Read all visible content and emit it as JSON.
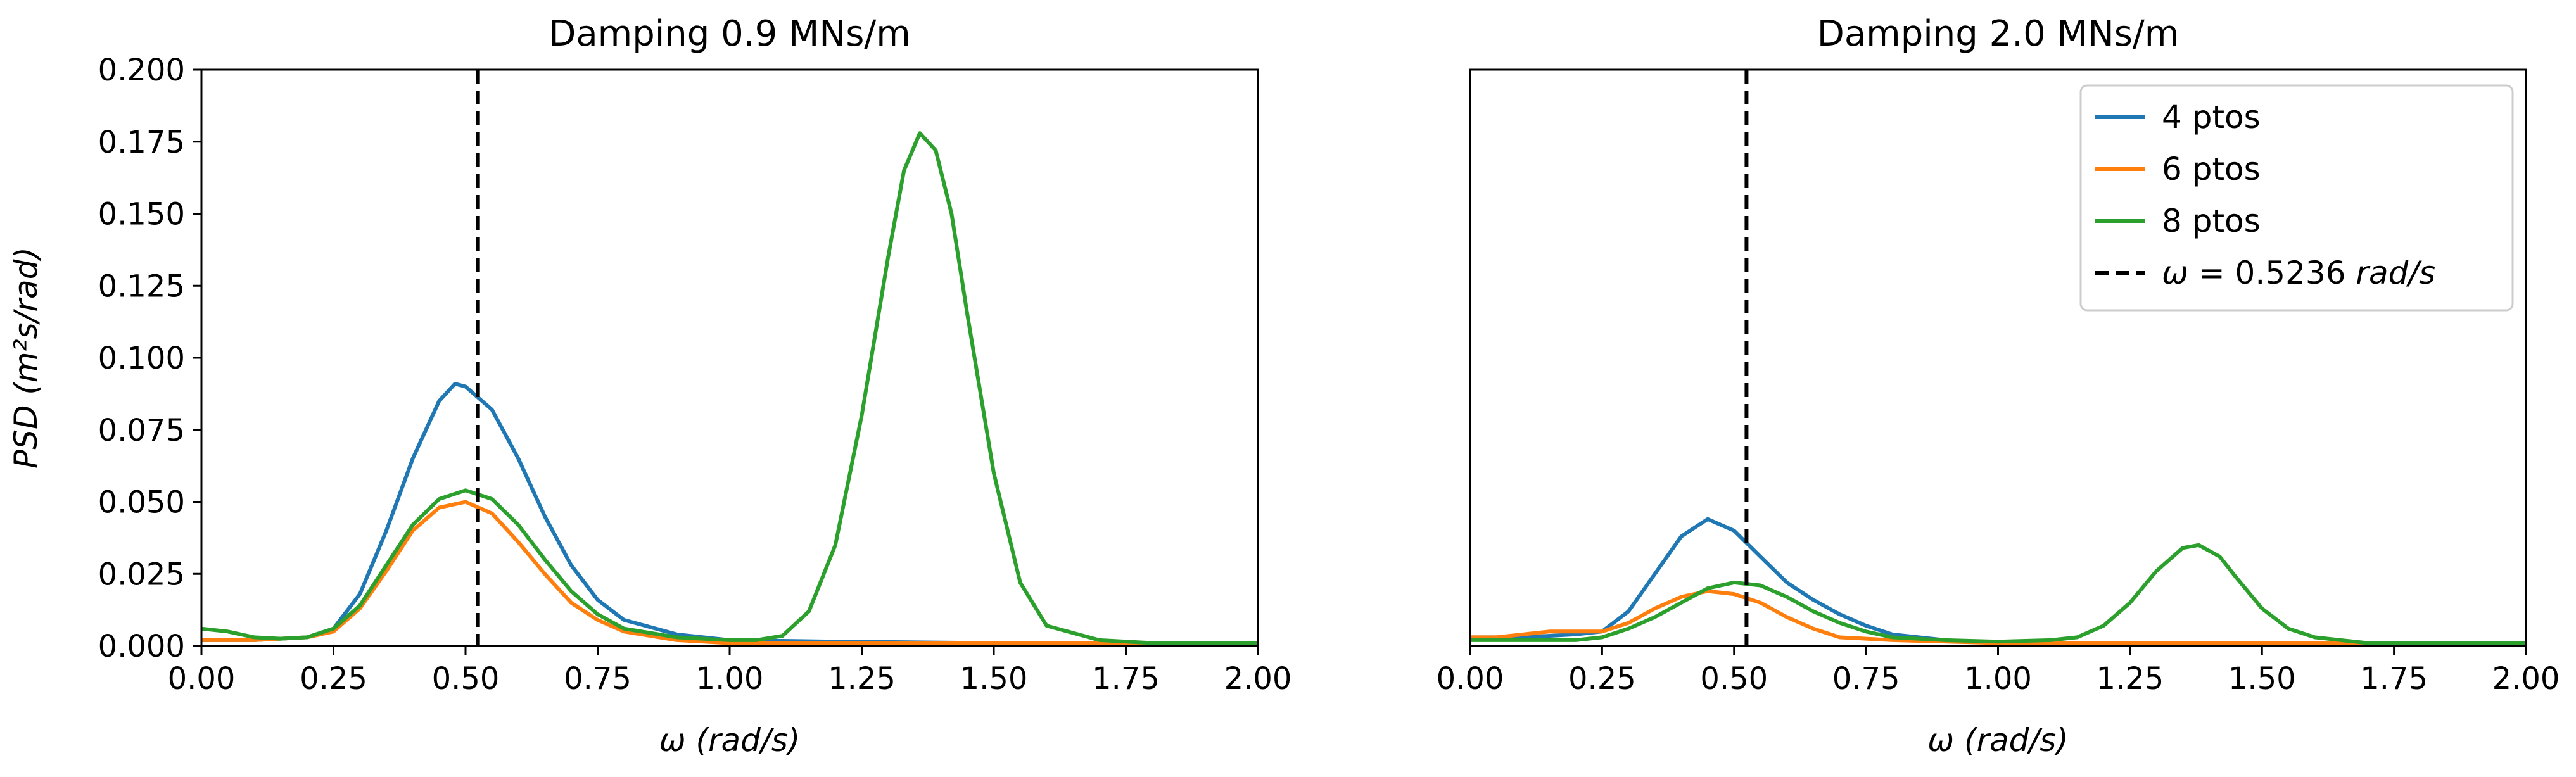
{
  "chart_data": [
    {
      "type": "line",
      "title": "Damping 0.9 MNs/m",
      "xlabel": "ω (rad/s)",
      "ylabel": "PSD (m²s/rad)",
      "xlim": [
        0.0,
        2.0
      ],
      "ylim": [
        0.0,
        0.2
      ],
      "x_ticks": [
        "0.00",
        "0.25",
        "0.50",
        "0.75",
        "1.00",
        "1.25",
        "1.50",
        "1.75",
        "2.00"
      ],
      "y_ticks": [
        "0.000",
        "0.025",
        "0.050",
        "0.075",
        "0.100",
        "0.125",
        "0.150",
        "0.175",
        "0.200"
      ],
      "grid": false,
      "vline": {
        "x": 0.5236,
        "style": "dashed",
        "color": "#000000"
      },
      "series": [
        {
          "name": "4 ptos",
          "color": "#1f77b4",
          "points": [
            [
              0.0,
              0.002
            ],
            [
              0.1,
              0.002
            ],
            [
              0.2,
              0.003
            ],
            [
              0.25,
              0.006
            ],
            [
              0.3,
              0.018
            ],
            [
              0.35,
              0.04
            ],
            [
              0.4,
              0.065
            ],
            [
              0.45,
              0.085
            ],
            [
              0.48,
              0.091
            ],
            [
              0.5,
              0.09
            ],
            [
              0.55,
              0.082
            ],
            [
              0.6,
              0.065
            ],
            [
              0.65,
              0.045
            ],
            [
              0.7,
              0.028
            ],
            [
              0.75,
              0.016
            ],
            [
              0.8,
              0.009
            ],
            [
              0.9,
              0.004
            ],
            [
              1.0,
              0.002
            ],
            [
              1.2,
              0.0015
            ],
            [
              1.5,
              0.001
            ],
            [
              2.0,
              0.001
            ]
          ]
        },
        {
          "name": "6 ptos",
          "color": "#ff7f0e",
          "points": [
            [
              0.0,
              0.002
            ],
            [
              0.1,
              0.002
            ],
            [
              0.2,
              0.003
            ],
            [
              0.25,
              0.005
            ],
            [
              0.3,
              0.013
            ],
            [
              0.35,
              0.026
            ],
            [
              0.4,
              0.04
            ],
            [
              0.45,
              0.048
            ],
            [
              0.5,
              0.05
            ],
            [
              0.55,
              0.046
            ],
            [
              0.6,
              0.036
            ],
            [
              0.65,
              0.025
            ],
            [
              0.7,
              0.015
            ],
            [
              0.75,
              0.009
            ],
            [
              0.8,
              0.005
            ],
            [
              0.9,
              0.002
            ],
            [
              1.0,
              0.001
            ],
            [
              1.5,
              0.001
            ],
            [
              2.0,
              0.001
            ]
          ]
        },
        {
          "name": "8 ptos",
          "color": "#2ca02c",
          "points": [
            [
              0.0,
              0.006
            ],
            [
              0.05,
              0.005
            ],
            [
              0.1,
              0.003
            ],
            [
              0.15,
              0.0025
            ],
            [
              0.2,
              0.003
            ],
            [
              0.25,
              0.006
            ],
            [
              0.3,
              0.014
            ],
            [
              0.35,
              0.028
            ],
            [
              0.4,
              0.042
            ],
            [
              0.45,
              0.051
            ],
            [
              0.5,
              0.054
            ],
            [
              0.55,
              0.051
            ],
            [
              0.6,
              0.042
            ],
            [
              0.65,
              0.03
            ],
            [
              0.7,
              0.019
            ],
            [
              0.75,
              0.011
            ],
            [
              0.8,
              0.006
            ],
            [
              0.9,
              0.003
            ],
            [
              1.0,
              0.002
            ],
            [
              1.05,
              0.002
            ],
            [
              1.1,
              0.0035
            ],
            [
              1.15,
              0.012
            ],
            [
              1.2,
              0.035
            ],
            [
              1.25,
              0.08
            ],
            [
              1.3,
              0.135
            ],
            [
              1.33,
              0.165
            ],
            [
              1.36,
              0.178
            ],
            [
              1.39,
              0.172
            ],
            [
              1.42,
              0.15
            ],
            [
              1.45,
              0.115
            ],
            [
              1.5,
              0.06
            ],
            [
              1.55,
              0.022
            ],
            [
              1.6,
              0.007
            ],
            [
              1.7,
              0.002
            ],
            [
              1.8,
              0.001
            ],
            [
              2.0,
              0.001
            ]
          ]
        }
      ]
    },
    {
      "type": "line",
      "title": "Damping 2.0 MNs/m",
      "xlabel": "ω (rad/s)",
      "ylabel": "",
      "xlim": [
        0.0,
        2.0
      ],
      "ylim": [
        0.0,
        0.2
      ],
      "x_ticks": [
        "0.00",
        "0.25",
        "0.50",
        "0.75",
        "1.00",
        "1.25",
        "1.50",
        "1.75",
        "2.00"
      ],
      "y_ticks": [],
      "grid": false,
      "legend_position": "top-right",
      "vline": {
        "x": 0.5236,
        "style": "dashed",
        "color": "#000000",
        "label": "ω = 0.5236 rad/s"
      },
      "series": [
        {
          "name": "4 ptos",
          "color": "#1f77b4",
          "points": [
            [
              0.0,
              0.003
            ],
            [
              0.1,
              0.003
            ],
            [
              0.2,
              0.004
            ],
            [
              0.25,
              0.005
            ],
            [
              0.3,
              0.012
            ],
            [
              0.35,
              0.025
            ],
            [
              0.4,
              0.038
            ],
            [
              0.45,
              0.044
            ],
            [
              0.5,
              0.04
            ],
            [
              0.55,
              0.031
            ],
            [
              0.6,
              0.022
            ],
            [
              0.65,
              0.016
            ],
            [
              0.7,
              0.011
            ],
            [
              0.75,
              0.007
            ],
            [
              0.8,
              0.004
            ],
            [
              0.9,
              0.002
            ],
            [
              1.0,
              0.001
            ],
            [
              1.5,
              0.001
            ],
            [
              2.0,
              0.001
            ]
          ]
        },
        {
          "name": "6 ptos",
          "color": "#ff7f0e",
          "points": [
            [
              0.0,
              0.003
            ],
            [
              0.05,
              0.003
            ],
            [
              0.1,
              0.004
            ],
            [
              0.15,
              0.005
            ],
            [
              0.2,
              0.005
            ],
            [
              0.25,
              0.005
            ],
            [
              0.3,
              0.008
            ],
            [
              0.35,
              0.013
            ],
            [
              0.4,
              0.017
            ],
            [
              0.45,
              0.019
            ],
            [
              0.5,
              0.018
            ],
            [
              0.55,
              0.015
            ],
            [
              0.6,
              0.01
            ],
            [
              0.65,
              0.006
            ],
            [
              0.7,
              0.003
            ],
            [
              0.8,
              0.002
            ],
            [
              1.0,
              0.001
            ],
            [
              1.5,
              0.001
            ],
            [
              2.0,
              0.001
            ]
          ]
        },
        {
          "name": "8 ptos",
          "color": "#2ca02c",
          "points": [
            [
              0.0,
              0.002
            ],
            [
              0.1,
              0.002
            ],
            [
              0.2,
              0.002
            ],
            [
              0.25,
              0.003
            ],
            [
              0.3,
              0.006
            ],
            [
              0.35,
              0.01
            ],
            [
              0.4,
              0.015
            ],
            [
              0.45,
              0.02
            ],
            [
              0.5,
              0.022
            ],
            [
              0.55,
              0.021
            ],
            [
              0.6,
              0.017
            ],
            [
              0.65,
              0.012
            ],
            [
              0.7,
              0.008
            ],
            [
              0.75,
              0.005
            ],
            [
              0.8,
              0.003
            ],
            [
              0.9,
              0.002
            ],
            [
              1.0,
              0.0015
            ],
            [
              1.1,
              0.002
            ],
            [
              1.15,
              0.003
            ],
            [
              1.2,
              0.007
            ],
            [
              1.25,
              0.015
            ],
            [
              1.3,
              0.026
            ],
            [
              1.35,
              0.034
            ],
            [
              1.38,
              0.035
            ],
            [
              1.42,
              0.031
            ],
            [
              1.45,
              0.024
            ],
            [
              1.5,
              0.013
            ],
            [
              1.55,
              0.006
            ],
            [
              1.6,
              0.003
            ],
            [
              1.7,
              0.001
            ],
            [
              2.0,
              0.001
            ]
          ]
        }
      ],
      "legend": [
        {
          "label": "4 ptos",
          "color": "#1f77b4",
          "style": "solid"
        },
        {
          "label": "6 ptos",
          "color": "#ff7f0e",
          "style": "solid"
        },
        {
          "label": "8 ptos",
          "color": "#2ca02c",
          "style": "solid"
        },
        {
          "label_prefix": "ω",
          "label_mid": " = 0.5236 ",
          "label_unit": "rad/s",
          "color": "#000000",
          "style": "dashed"
        }
      ]
    }
  ]
}
